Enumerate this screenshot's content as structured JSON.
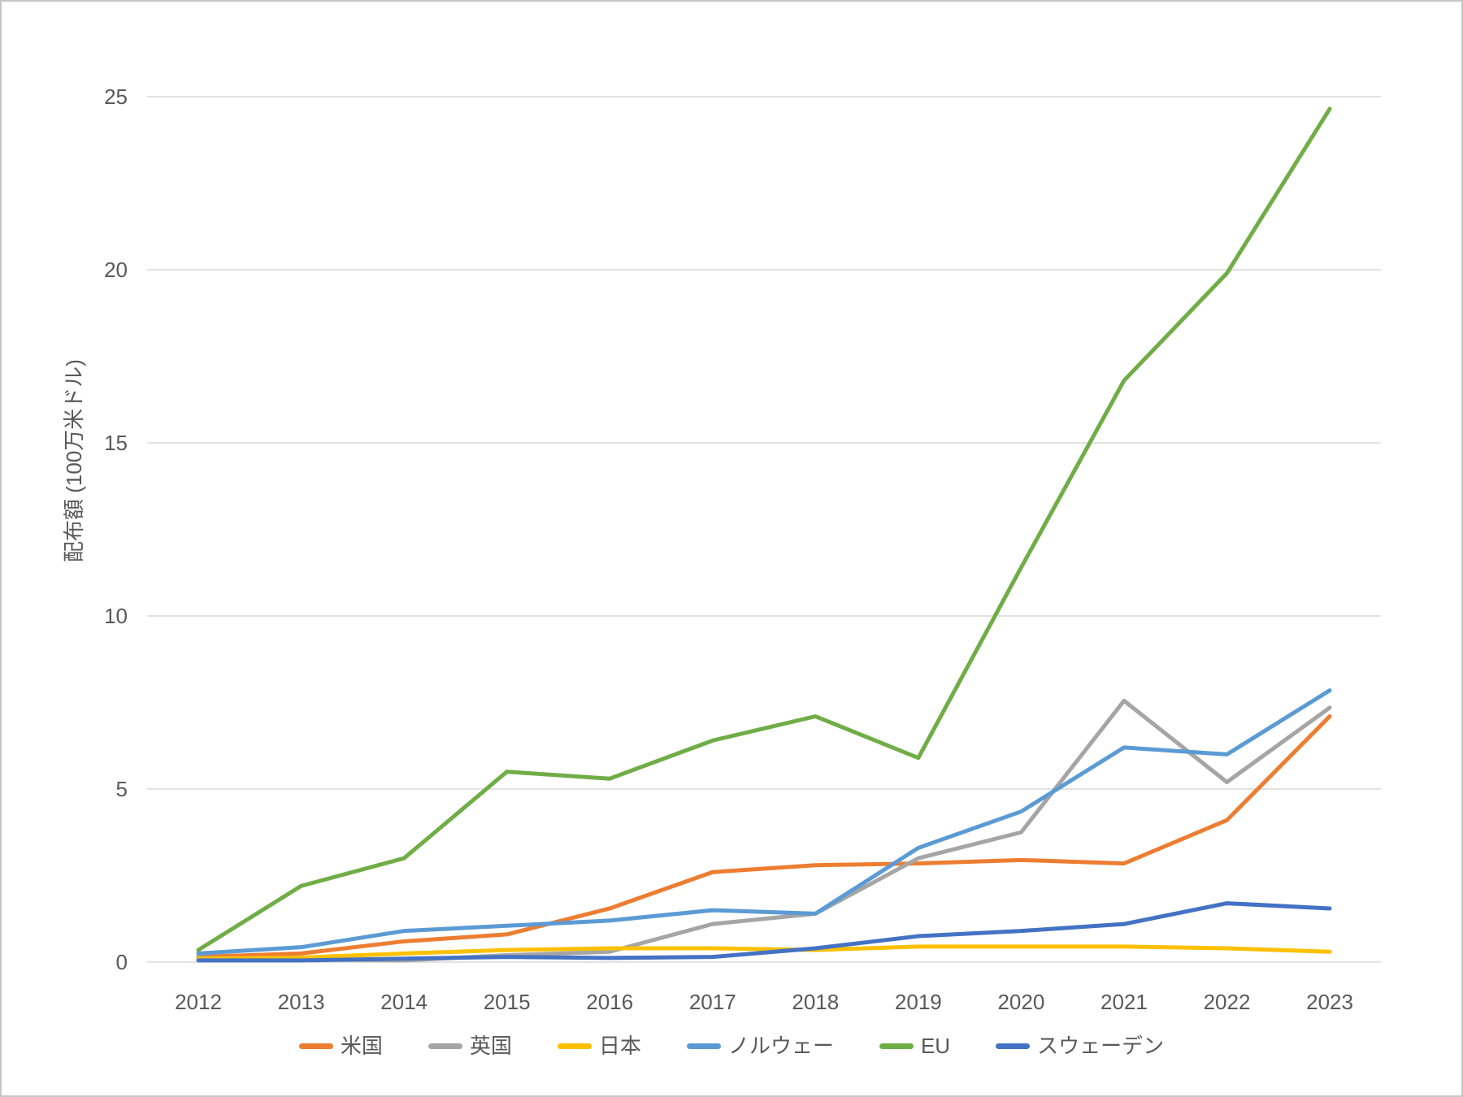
{
  "chart_data": {
    "type": "line",
    "title": "",
    "xlabel": "",
    "ylabel": "配布額 (100万米ドル)",
    "categories": [
      "2012",
      "2013",
      "2014",
      "2015",
      "2016",
      "2017",
      "2018",
      "2019",
      "2020",
      "2021",
      "2022",
      "2023"
    ],
    "series": [
      {
        "name": "米国",
        "color": "#ED7D31",
        "values": [
          0.15,
          0.25,
          0.6,
          0.8,
          1.55,
          2.6,
          2.8,
          2.85,
          2.95,
          2.85,
          4.1,
          7.1
        ]
      },
      {
        "name": "英国",
        "color": "#A5A5A5",
        "values": [
          0.12,
          0.08,
          0.05,
          0.2,
          0.3,
          1.1,
          1.4,
          3.0,
          3.75,
          7.55,
          5.2,
          7.35
        ]
      },
      {
        "name": "日本",
        "color": "#FFC000",
        "values": [
          0.1,
          0.13,
          0.25,
          0.35,
          0.4,
          0.4,
          0.35,
          0.45,
          0.45,
          0.45,
          0.4,
          0.3
        ]
      },
      {
        "name": "ノルウェー",
        "color": "#5B9BD5",
        "values": [
          0.25,
          0.43,
          0.9,
          1.05,
          1.2,
          1.5,
          1.4,
          3.3,
          4.35,
          6.2,
          6.0,
          7.85
        ]
      },
      {
        "name": "EU",
        "color": "#70AD47",
        "values": [
          0.35,
          2.2,
          3.0,
          5.5,
          5.3,
          6.4,
          7.1,
          5.9,
          11.4,
          16.8,
          19.9,
          24.65
        ]
      },
      {
        "name": "スウェーデン",
        "color": "#4472C4",
        "values": [
          0.05,
          0.05,
          0.1,
          0.15,
          0.12,
          0.15,
          0.4,
          0.75,
          0.9,
          1.1,
          1.7,
          1.55
        ]
      }
    ],
    "ylim": [
      0,
      25
    ],
    "yticks": [
      0,
      5,
      10,
      15,
      20,
      25
    ],
    "grid": "horizontal",
    "gridline_color": "#D9D9D9",
    "axis_text_color": "#595959",
    "legend_position": "bottom"
  }
}
